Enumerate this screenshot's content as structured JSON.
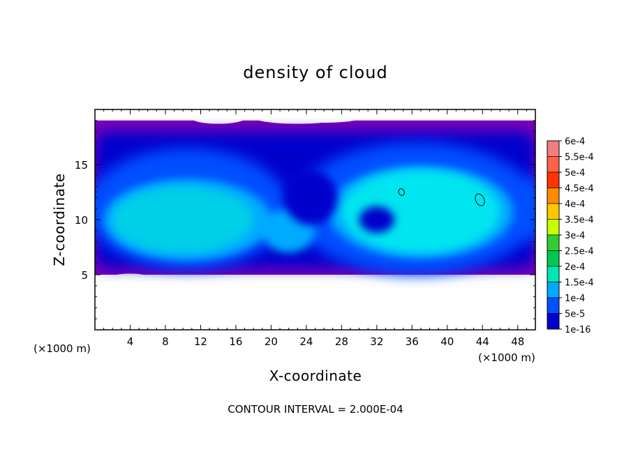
{
  "chart_data": {
    "type": "heatmap",
    "title": "density of cloud",
    "xlabel": "X-coordinate",
    "ylabel": "Z-coordinate",
    "x_unit": "(×1000 m)",
    "xlim": [
      0,
      50
    ],
    "ylim": [
      0,
      20
    ],
    "x_ticks": [
      4,
      8,
      12,
      16,
      20,
      24,
      28,
      32,
      36,
      40,
      44,
      48
    ],
    "y_ticks": [
      5,
      10,
      15
    ],
    "contour_interval_text": "CONTOUR INTERVAL = 2.000E-04",
    "colorbar": {
      "labels": [
        "6e-4",
        "5.5e-4",
        "5e-4",
        "4.5e-4",
        "4e-4",
        "3.5e-4",
        "3e-4",
        "2.5e-4",
        "2e-4",
        "1.5e-4",
        "1e-4",
        "5e-5",
        "1e-16"
      ],
      "colors": [
        "#f08080",
        "#ff6347",
        "#ff3300",
        "#ff8c00",
        "#ffc800",
        "#c8ff00",
        "#32cd32",
        "#00c850",
        "#00e6b4",
        "#00aaff",
        "#0050ff",
        "#0000cc",
        "#7b00b8"
      ]
    },
    "field": {
      "cloud_layer_z": [
        5,
        19
      ],
      "core_value": 0.0002,
      "cores": [
        {
          "x_range": [
            2,
            18
          ],
          "z_range": [
            7,
            13
          ]
        },
        {
          "x_range": [
            28,
            46
          ],
          "z_range": [
            7,
            14.5
          ]
        }
      ],
      "contour_2e-4_centers": [
        {
          "x": 34.8,
          "z": 12.5
        },
        {
          "x": 43.7,
          "z": 11.8
        }
      ]
    }
  }
}
